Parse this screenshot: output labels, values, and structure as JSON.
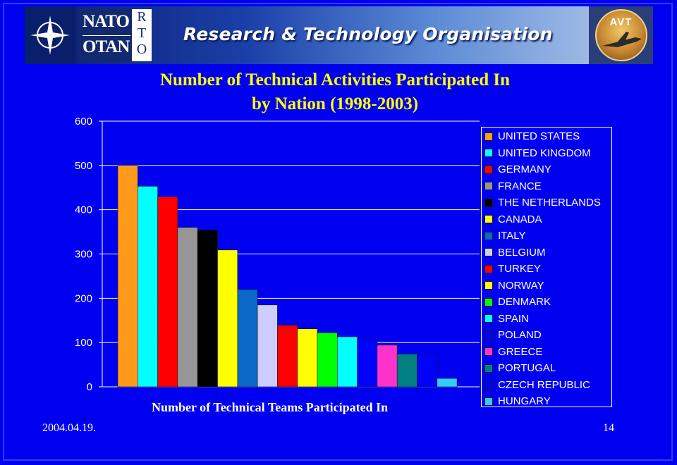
{
  "banner": {
    "nato_line1": "NATO",
    "nato_line2": "OTAN",
    "rto_letters": [
      "R",
      "T",
      "O"
    ],
    "title": "Research & Technology Organisation",
    "badge": "AVT"
  },
  "footer": {
    "date": "2004.04.19.",
    "page": "14"
  },
  "chart_data": {
    "type": "bar",
    "title_lines": [
      "Number of Technical Activities Participated In",
      "by Nation (1998-2003)"
    ],
    "xlabel": "Number of Technical Teams Participated In",
    "ylabel": "",
    "ylim": [
      0,
      600
    ],
    "yticks": [
      "0",
      "100",
      "200",
      "300",
      "400",
      "500",
      "600"
    ],
    "grid": true,
    "legend_position": "right",
    "series": [
      {
        "name": "UNITED STATES",
        "value": 500,
        "color": "#ff9a1a"
      },
      {
        "name": "UNITED KINGDOM",
        "value": 453,
        "color": "#00ffff"
      },
      {
        "name": "GERMANY",
        "value": 429,
        "color": "#ff0000"
      },
      {
        "name": "FRANCE",
        "value": 360,
        "color": "#969696"
      },
      {
        "name": "THE NETHERLANDS",
        "value": 354,
        "color": "#000000"
      },
      {
        "name": "CANADA",
        "value": 309,
        "color": "#ffff00"
      },
      {
        "name": "ITALY",
        "value": 220,
        "color": "#0a68c6"
      },
      {
        "name": "BELGIUM",
        "value": 185,
        "color": "#ccccff"
      },
      {
        "name": "TURKEY",
        "value": 139,
        "color": "#ff0000"
      },
      {
        "name": "NORWAY",
        "value": 131,
        "color": "#ffff00"
      },
      {
        "name": "DENMARK",
        "value": 122,
        "color": "#00ff00"
      },
      {
        "name": "SPAIN",
        "value": 113,
        "color": "#00ffff"
      },
      {
        "name": "POLAND",
        "value": 108,
        "color": "#0000ff"
      },
      {
        "name": "GREECE",
        "value": 94,
        "color": "#ff33cc"
      },
      {
        "name": "PORTUGAL",
        "value": 74,
        "color": "#008080"
      },
      {
        "name": "CZECH REPUBLIC",
        "value": 73,
        "color": "#0000ff"
      },
      {
        "name": "HUNGARY",
        "value": 19,
        "color": "#33ccff"
      }
    ]
  }
}
